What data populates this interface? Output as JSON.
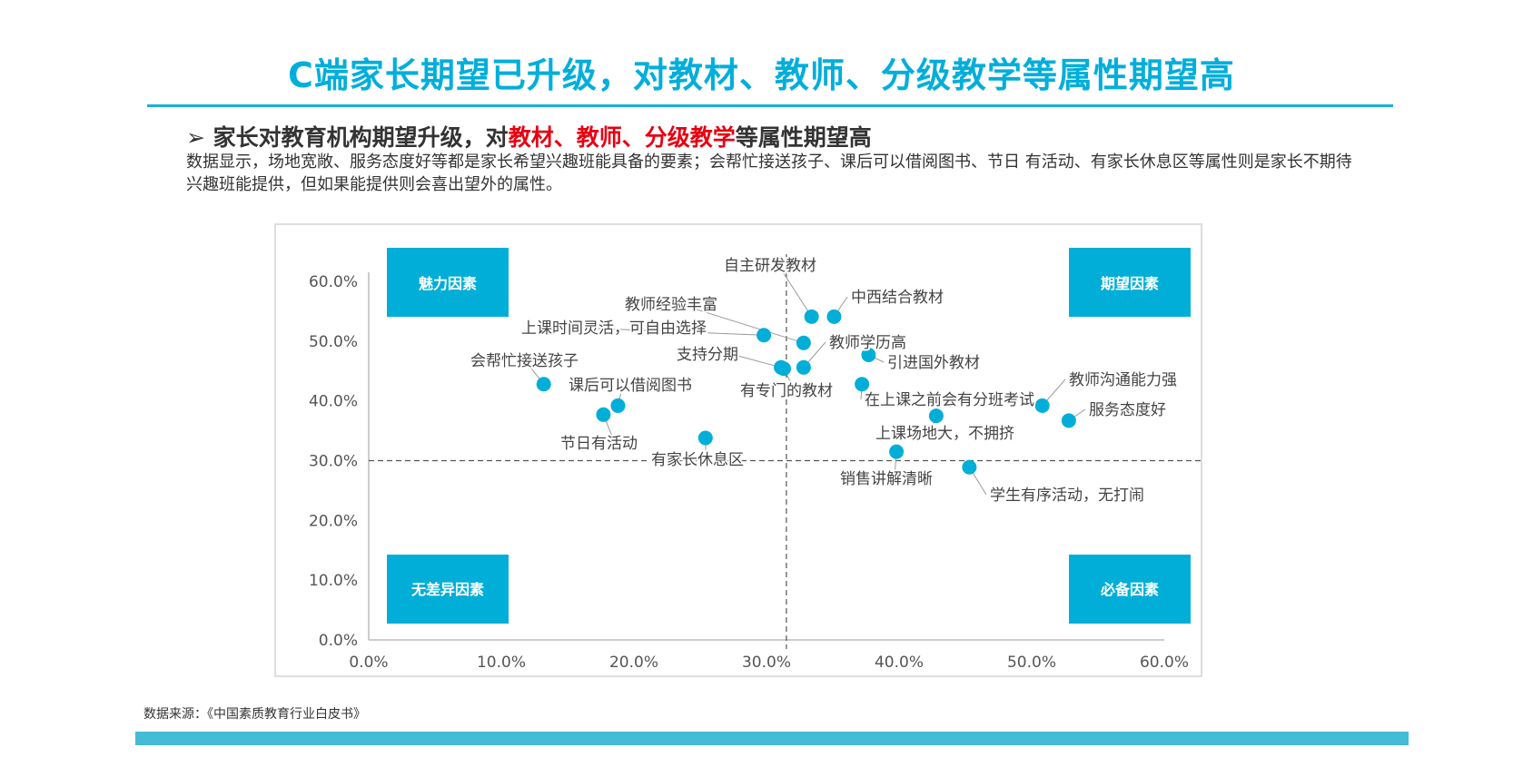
{
  "header": {
    "title": "C端家长期望已升级，对教材、教师、分级教学等属性期望高"
  },
  "subheading": {
    "arrow": "➢",
    "part1": "家长对教育机构期望升级，对",
    "highlight": "教材、教师、分级教学",
    "part2": "等属性期望高"
  },
  "body_text": "数据显示，场地宽敞、服务态度好等都是家长希望兴趣班能具备的要素；会帮忙接送孩子、课后可以借阅图书、节日 有活动、有家长休息区等属性则是家长不期待兴趣班能提供，但如果能提供则会喜出望外的属性。",
  "source": "数据来源：《中国素质教育行业白皮书》",
  "colors": {
    "accent": "#00AEDB",
    "highlight": "#E60012",
    "bar": "#45BCD5",
    "point": "#00AED8"
  },
  "chart_data": {
    "type": "scatter",
    "title": "",
    "xlabel": "",
    "ylabel": "",
    "xlim": [
      0,
      60
    ],
    "ylim": [
      0,
      60
    ],
    "x_ticks": [
      "0.0%",
      "10.0%",
      "20.0%",
      "30.0%",
      "40.0%",
      "50.0%",
      "60.0%"
    ],
    "y_ticks": [
      "0.0%",
      "10.0%",
      "20.0%",
      "30.0%",
      "40.0%",
      "50.0%",
      "60.0%"
    ],
    "reference_lines": {
      "x": 31.5,
      "y": 30
    },
    "quadrants": {
      "top_left": "魅力因素",
      "top_right": "期望因素",
      "bottom_left": "无差异因素",
      "bottom_right": "必备因素"
    },
    "points": [
      {
        "label": "会帮忙接送孩子",
        "x": 13.2,
        "y": 42.8
      },
      {
        "label": "课后可以借阅图书",
        "x": 18.8,
        "y": 39.2
      },
      {
        "label": "节日有活动",
        "x": 17.7,
        "y": 37.7
      },
      {
        "label": "有家长休息区",
        "x": 25.4,
        "y": 33.8
      },
      {
        "label": "上课时间灵活，可自由选择",
        "x": 29.8,
        "y": 51.0
      },
      {
        "label": "支持分期",
        "x": 31.1,
        "y": 45.6
      },
      {
        "label": "有专门的教材",
        "x": 31.3,
        "y": 45.4
      },
      {
        "label": "教师经验丰富",
        "x": 32.8,
        "y": 49.7
      },
      {
        "label": "自主研发教材",
        "x": 33.4,
        "y": 54.1
      },
      {
        "label": "中西结合教材",
        "x": 35.1,
        "y": 54.1
      },
      {
        "label": "教师学历高",
        "x": 32.8,
        "y": 45.6
      },
      {
        "label": "引进国外教材",
        "x": 37.7,
        "y": 47.7
      },
      {
        "label": "在上课之前会有分班考试",
        "x": 37.2,
        "y": 42.8
      },
      {
        "label": "上课场地大，不拥挤",
        "x": 42.8,
        "y": 37.5
      },
      {
        "label": "销售讲解清晰",
        "x": 39.8,
        "y": 31.5
      },
      {
        "label": "学生有序活动，无打闹",
        "x": 45.3,
        "y": 28.9
      },
      {
        "label": "教师沟通能力强",
        "x": 50.8,
        "y": 39.2
      },
      {
        "label": "服务态度好",
        "x": 52.8,
        "y": 36.7
      }
    ]
  }
}
